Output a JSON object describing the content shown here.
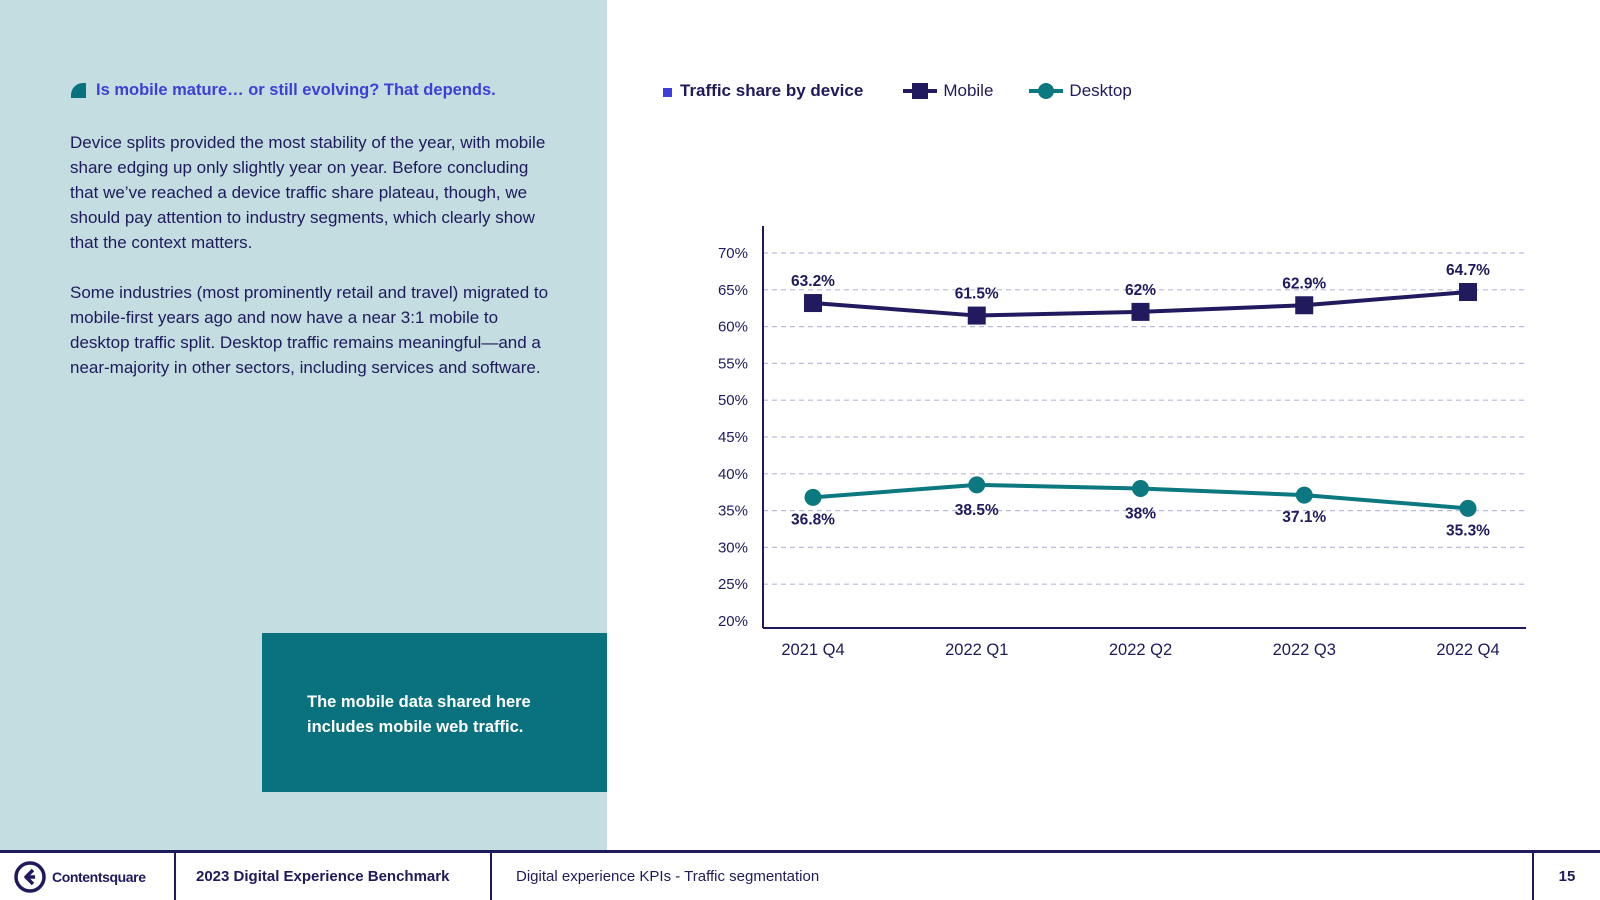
{
  "left": {
    "kicker": "Is mobile mature… or still evolving? That depends.",
    "paragraphs": [
      "Device splits provided the most stability of the year, with mobile share edging up only slightly year on year. Before concluding that we’ve reached a device traffic share plateau, though, we should pay attention to industry segments, which clearly show that the context matters.",
      "Some industries (most prominently retail and travel) migrated to mobile-first years ago and now have a near 3:1 mobile to desktop traffic split. Desktop traffic remains meaningful—and a near-majority in other sectors, including services and software."
    ],
    "note": "The mobile data shared here includes mobile web traffic."
  },
  "colors": {
    "panel": "#c3dde1",
    "accent": "#3d3fd6",
    "navy": "#1f1a5c",
    "teal": "#0a727e",
    "mobile": "#221a5e",
    "desktop": "#0c7880",
    "grid": "#b9b9de"
  },
  "chart_data": {
    "type": "line",
    "title": "Traffic share by device",
    "categories": [
      "2021 Q4",
      "2022 Q1",
      "2022 Q2",
      "2022 Q3",
      "2022 Q4"
    ],
    "series": [
      {
        "name": "Mobile",
        "values": [
          63.2,
          61.5,
          62,
          62.9,
          64.7
        ],
        "labels": [
          "63.2%",
          "61.5%",
          "62%",
          "62.9%",
          "64.7%"
        ],
        "marker": "square"
      },
      {
        "name": "Desktop",
        "values": [
          36.8,
          38.5,
          38,
          37.1,
          35.3
        ],
        "labels": [
          "36.8%",
          "38.5%",
          "38%",
          "37.1%",
          "35.3%"
        ],
        "marker": "circle"
      }
    ],
    "yticks": [
      20,
      25,
      30,
      35,
      40,
      45,
      50,
      55,
      60,
      65,
      70
    ],
    "ytick_labels": [
      "20%",
      "25%",
      "30%",
      "35%",
      "40%",
      "45%",
      "50%",
      "55%",
      "60%",
      "65%",
      "70%"
    ],
    "ylim": [
      20,
      70
    ],
    "grid": true,
    "legend": "top-left"
  },
  "footer": {
    "brand": "Contentsquare",
    "report": "2023 Digital Experience Benchmark",
    "section": "Digital experience KPIs - Traffic segmentation",
    "page": "15"
  }
}
